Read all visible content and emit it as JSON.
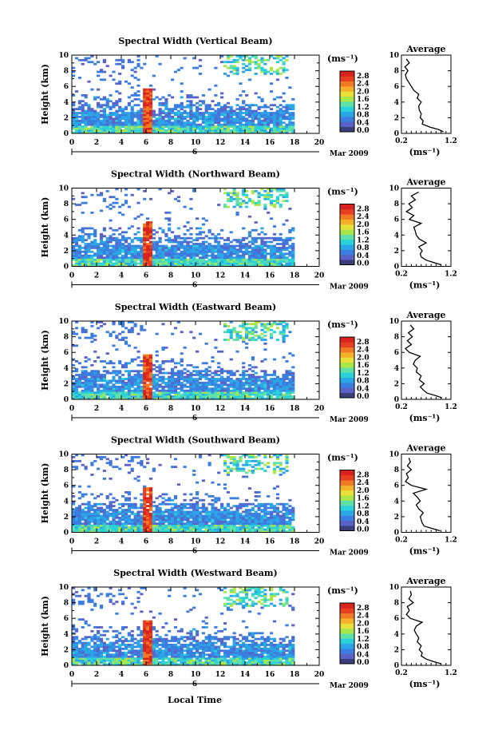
{
  "figure": {
    "xlabel": "Local Time",
    "ylabel": "Height (km)",
    "date_label": "Mar 2009",
    "day_marker": "6",
    "unit_label": "(ms⁻¹)",
    "avg_title": "Average",
    "avg_xlabel": "(ms⁻¹)"
  },
  "colorbar": {
    "ticks": [
      "0.0",
      "0.4",
      "0.8",
      "1.2",
      "1.6",
      "2.0",
      "2.4",
      "2.8"
    ],
    "colors": [
      "#3a3f7a",
      "#5a62c8",
      "#3b7ee0",
      "#2aa6e6",
      "#2ad1d8",
      "#5fe0a8",
      "#a8e64a",
      "#e8e03a",
      "#f5b02a",
      "#f07a24",
      "#e83e22",
      "#d8221e"
    ]
  },
  "chart_data": [
    {
      "type": "heatmap",
      "title": "Spectral Width (Vertical Beam)",
      "xlabel": "Local Time",
      "ylabel": "Height (km)",
      "xlim": [
        0,
        20
      ],
      "ylim": [
        0,
        10
      ],
      "xticks": [
        "0",
        "2",
        "4",
        "6",
        "8",
        "10",
        "12",
        "14",
        "16",
        "18",
        "20"
      ],
      "yticks": [
        "0",
        "2",
        "4",
        "6",
        "8",
        "10"
      ],
      "data_end_hour": 18,
      "average_profile": {
        "title": "Average",
        "xlabel": "(ms⁻¹)",
        "xlim": [
          0.2,
          1.2
        ],
        "xticks": [
          "0.2",
          "1.2"
        ],
        "yticks": [
          "0",
          "2",
          "4",
          "6",
          "8",
          "10"
        ],
        "height_km": [
          0.2,
          0.5,
          0.8,
          1.2,
          1.6,
          2.0,
          2.5,
          3.0,
          3.5,
          4.0,
          4.5,
          5.0,
          5.5,
          6.0,
          6.5,
          7.0,
          7.5,
          8.0,
          8.5,
          9.0,
          9.5
        ],
        "width_ms": [
          1.05,
          0.95,
          0.78,
          0.62,
          0.64,
          0.58,
          0.6,
          0.56,
          0.55,
          0.6,
          0.52,
          0.55,
          0.45,
          0.4,
          0.35,
          0.3,
          0.28,
          0.33,
          0.27,
          0.36,
          0.3
        ]
      }
    },
    {
      "type": "heatmap",
      "title": "Spectral Width (Northward Beam)",
      "xlabel": "Local Time",
      "ylabel": "Height (km)",
      "xlim": [
        0,
        20
      ],
      "ylim": [
        0,
        10
      ],
      "xticks": [
        "0",
        "2",
        "4",
        "6",
        "8",
        "10",
        "12",
        "14",
        "16",
        "18",
        "20"
      ],
      "yticks": [
        "0",
        "2",
        "4",
        "6",
        "8",
        "10"
      ],
      "data_end_hour": 18,
      "average_profile": {
        "title": "Average",
        "xlabel": "(ms⁻¹)",
        "xlim": [
          0.2,
          1.2
        ],
        "xticks": [
          "0.2",
          "1.2"
        ],
        "yticks": [
          "0",
          "2",
          "4",
          "6",
          "8",
          "10"
        ],
        "height_km": [
          0.2,
          0.5,
          0.8,
          1.2,
          1.6,
          2.0,
          2.5,
          3.0,
          3.5,
          4.0,
          4.5,
          5.0,
          5.5,
          6.0,
          6.5,
          7.0,
          7.5,
          8.0,
          8.5,
          9.0,
          9.5
        ],
        "width_ms": [
          1.0,
          0.85,
          0.7,
          0.6,
          0.58,
          0.62,
          0.55,
          0.7,
          0.56,
          0.5,
          0.48,
          0.45,
          0.6,
          0.36,
          0.45,
          0.3,
          0.42,
          0.35,
          0.48,
          0.4,
          0.55
        ]
      }
    },
    {
      "type": "heatmap",
      "title": "Spectral Width (Eastward Beam)",
      "xlabel": "Local Time",
      "ylabel": "Height (km)",
      "xlim": [
        0,
        20
      ],
      "ylim": [
        0,
        10
      ],
      "xticks": [
        "0",
        "2",
        "4",
        "6",
        "8",
        "10",
        "12",
        "14",
        "16",
        "18",
        "20"
      ],
      "yticks": [
        "0",
        "2",
        "4",
        "6",
        "8",
        "10"
      ],
      "data_end_hour": 18,
      "average_profile": {
        "title": "Average",
        "xlabel": "(ms⁻¹)",
        "xlim": [
          0.2,
          1.2
        ],
        "xticks": [
          "0.2",
          "1.2"
        ],
        "yticks": [
          "0",
          "2",
          "4",
          "6",
          "8",
          "10"
        ],
        "height_km": [
          0.2,
          0.5,
          0.8,
          1.2,
          1.6,
          2.0,
          2.5,
          3.0,
          3.5,
          4.0,
          4.5,
          5.0,
          5.5,
          6.0,
          6.5,
          7.0,
          7.5,
          8.0,
          8.5,
          9.0,
          9.5
        ],
        "width_ms": [
          1.02,
          0.88,
          0.72,
          0.64,
          0.58,
          0.66,
          0.56,
          0.6,
          0.5,
          0.52,
          0.44,
          0.48,
          0.58,
          0.36,
          0.28,
          0.4,
          0.32,
          0.42,
          0.34,
          0.45,
          0.38
        ]
      }
    },
    {
      "type": "heatmap",
      "title": "Spectral Width (Southward Beam)",
      "xlabel": "Local Time",
      "ylabel": "Height (km)",
      "xlim": [
        0,
        20
      ],
      "ylim": [
        0,
        10
      ],
      "xticks": [
        "0",
        "2",
        "4",
        "6",
        "8",
        "10",
        "12",
        "14",
        "16",
        "18",
        "20"
      ],
      "yticks": [
        "0",
        "2",
        "4",
        "6",
        "8",
        "10"
      ],
      "data_end_hour": 18,
      "average_profile": {
        "title": "Average",
        "xlabel": "(ms⁻¹)",
        "xlim": [
          0.2,
          1.2
        ],
        "xticks": [
          "0.2",
          "1.2"
        ],
        "yticks": [
          "0",
          "2",
          "4",
          "6",
          "8",
          "10"
        ],
        "height_km": [
          0.2,
          0.5,
          0.8,
          1.2,
          1.6,
          2.0,
          2.5,
          3.0,
          3.5,
          4.0,
          4.5,
          5.0,
          5.5,
          6.0,
          6.5,
          7.0,
          7.5,
          8.0,
          8.5,
          9.0,
          9.5
        ],
        "width_ms": [
          0.98,
          0.82,
          0.66,
          0.62,
          0.6,
          0.58,
          0.64,
          0.55,
          0.5,
          0.58,
          0.52,
          0.44,
          0.7,
          0.4,
          0.28,
          0.34,
          0.3,
          0.4,
          0.32,
          0.38,
          0.35
        ]
      }
    },
    {
      "type": "heatmap",
      "title": "Spectral Width (Westward Beam)",
      "xlabel": "Local Time",
      "ylabel": "Height (km)",
      "xlim": [
        0,
        20
      ],
      "ylim": [
        0,
        10
      ],
      "xticks": [
        "0",
        "2",
        "4",
        "6",
        "8",
        "10",
        "12",
        "14",
        "16",
        "18",
        "20"
      ],
      "yticks": [
        "0",
        "2",
        "4",
        "6",
        "8",
        "10"
      ],
      "data_end_hour": 18,
      "average_profile": {
        "title": "Average",
        "xlabel": "(ms⁻¹)",
        "xlim": [
          0.2,
          1.2
        ],
        "xticks": [
          "0.2",
          "1.2"
        ],
        "yticks": [
          "0",
          "2",
          "4",
          "6",
          "8",
          "10"
        ],
        "height_km": [
          0.2,
          0.5,
          0.8,
          1.2,
          1.6,
          2.0,
          2.5,
          3.0,
          3.5,
          4.0,
          4.5,
          5.0,
          5.5,
          6.0,
          6.5,
          7.0,
          7.5,
          8.0,
          8.5,
          9.0,
          9.5
        ],
        "width_ms": [
          1.0,
          0.84,
          0.7,
          0.6,
          0.62,
          0.56,
          0.6,
          0.52,
          0.55,
          0.5,
          0.46,
          0.5,
          0.62,
          0.38,
          0.3,
          0.36,
          0.32,
          0.44,
          0.35,
          0.4,
          0.38
        ]
      }
    }
  ]
}
